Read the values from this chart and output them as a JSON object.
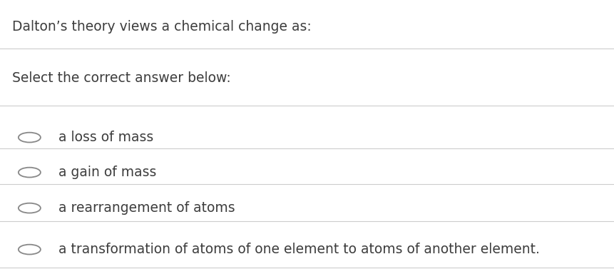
{
  "title": "Dalton’s theory views a chemical change as:",
  "subtitle": "Select the correct answer below:",
  "options": [
    "a loss of mass",
    "a gain of mass",
    "a rearrangement of atoms",
    "a transformation of atoms of one element to atoms of another element."
  ],
  "bg_color": "#ffffff",
  "title_color": "#3d3d3d",
  "line_color": "#cccccc",
  "circle_color": "#888888",
  "title_fontsize": 13.5,
  "subtitle_fontsize": 13.5,
  "option_fontsize": 13.5,
  "figwidth": 8.62,
  "figheight": 3.84,
  "dpi": 100
}
